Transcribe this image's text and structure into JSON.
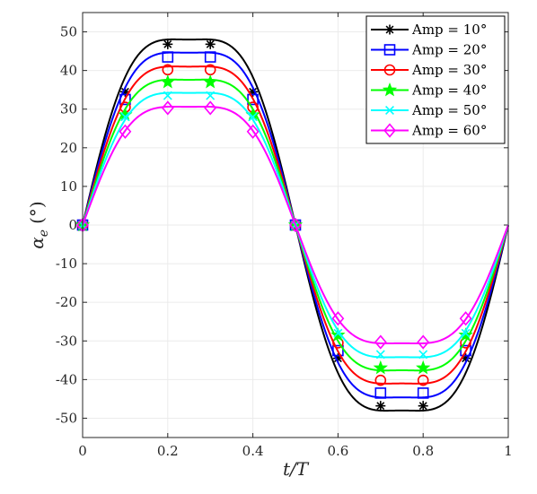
{
  "chart_data": {
    "type": "line",
    "xlabel": "t/T",
    "ylabel": "α_e (°)",
    "ylabel_parts": {
      "symbol": "α",
      "subscript": "e",
      "unit": "(°)"
    },
    "xlim": [
      0,
      1
    ],
    "ylim": [
      -55,
      55
    ],
    "x_ticks": [
      0,
      0.2,
      0.4,
      0.6,
      0.8,
      1
    ],
    "x_tick_labels": [
      "0",
      "0.2",
      "0.4",
      "0.6",
      "0.8",
      "1"
    ],
    "y_ticks": [
      50,
      40,
      30,
      20,
      10,
      0,
      -10,
      -20,
      -30,
      -40,
      -50
    ],
    "y_tick_labels": [
      "50",
      "40",
      "30",
      "20",
      "10",
      "0",
      "-10",
      "-20",
      "-30",
      "-40",
      "-50"
    ],
    "grid": true,
    "legend_position": "top-right",
    "marker_x": [
      0,
      0.1,
      0.2,
      0.3,
      0.4,
      0.5,
      0.6,
      0.7,
      0.8,
      0.9
    ],
    "series": [
      {
        "name": "Amp = 10°",
        "color": "#000000",
        "marker": "asterisk",
        "peak": 48,
        "marker_y": [
          0,
          34.5,
          46.8,
          46.8,
          34.5,
          0,
          -34.5,
          -46.8,
          -46.8,
          -34.5
        ]
      },
      {
        "name": "Amp = 20°",
        "color": "#0000ff",
        "marker": "square",
        "peak": 44.6,
        "marker_y": [
          0,
          32.5,
          43.5,
          43.5,
          32.5,
          0,
          -32.5,
          -43.5,
          -43.5,
          -32.5
        ]
      },
      {
        "name": "Amp = 30°",
        "color": "#ff0000",
        "marker": "circle",
        "peak": 41,
        "marker_y": [
          0,
          30.5,
          40.2,
          40.2,
          30.5,
          0,
          -30.5,
          -40.2,
          -40.2,
          -30.5
        ]
      },
      {
        "name": "Amp = 40°",
        "color": "#00ff00",
        "marker": "star",
        "peak": 37.6,
        "marker_y": [
          0,
          28.5,
          37,
          37,
          28.5,
          0,
          -28.5,
          -37,
          -37,
          -28.5
        ]
      },
      {
        "name": "Amp = 50°",
        "color": "#00ffff",
        "marker": "x",
        "peak": 34.2,
        "marker_y": [
          0,
          28,
          33.5,
          33.5,
          28,
          0,
          -28,
          -33.5,
          -33.5,
          -28
        ]
      },
      {
        "name": "Amp = 60°",
        "color": "#ff00ff",
        "marker": "diamond",
        "peak": 30.6,
        "marker_y": [
          0,
          24.2,
          30.3,
          30.3,
          24.2,
          0,
          -24.2,
          -30.3,
          -30.3,
          -24.2
        ]
      }
    ]
  }
}
